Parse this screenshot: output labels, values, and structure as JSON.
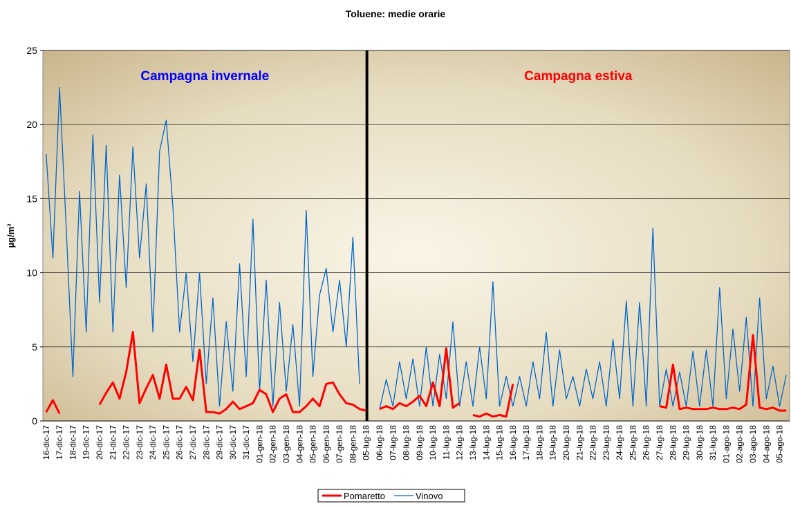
{
  "chart_data": {
    "type": "line",
    "title": "Toluene: medie orarie",
    "y_label": "µg/m³",
    "annotations": [
      {
        "text": "Campagna invernale",
        "color": "#0000ff"
      },
      {
        "text": "Campagna estiva",
        "color": "#ff0000"
      }
    ],
    "categories": [
      "16-dic-17",
      null,
      "17-dic-17",
      null,
      "18-dic-17",
      null,
      "19-dic-17",
      null,
      "20-dic-17",
      null,
      "21-dic-17",
      null,
      "22-dic-17",
      null,
      "23-dic-17",
      null,
      "24-dic-17",
      null,
      "25-dic-17",
      null,
      "26-dic-17",
      null,
      "27-dic-17",
      null,
      "28-dic-17",
      null,
      "29-dic-17",
      null,
      "30-dic-17",
      null,
      "31-dic-17",
      null,
      "01-gen-18",
      null,
      "02-gen-18",
      null,
      "03-gen-18",
      null,
      "04-gen-18",
      null,
      "05-gen-18",
      null,
      "06-gen-18",
      null,
      "07-gen-18",
      null,
      "08-gen-18",
      null,
      "05-lug-18",
      null,
      "06-lug-18",
      null,
      "07-lug-18",
      null,
      "08-lug-18",
      null,
      "09-lug-18",
      null,
      "10-lug-18",
      null,
      "11-lug-18",
      null,
      "12-lug-18",
      null,
      "13-lug-18",
      null,
      "14-lug-18",
      null,
      "15-lug-18",
      null,
      "16-lug-18",
      null,
      "17-lug-18",
      null,
      "18-lug-18",
      null,
      "19-lug-18",
      null,
      "20-lug-18",
      null,
      "21-lug-18",
      null,
      "22-lug-18",
      null,
      "23-lug-18",
      null,
      "24-lug-18",
      null,
      "25-lug-18",
      null,
      "26-lug-18",
      null,
      "27-lug-18",
      null,
      "28-lug-18",
      null,
      "29-lug-18",
      null,
      "30-lug-18",
      null,
      "31-lug-18",
      null,
      "01-ago-18",
      null,
      "02-ago-18",
      null,
      "03-ago-18",
      null,
      "04-ago-18",
      null,
      "05-ago-18",
      null
    ],
    "series": [
      {
        "name": "Pomaretto",
        "color": "#ff0000",
        "values": [
          0.6,
          1.4,
          0.5,
          null,
          null,
          null,
          null,
          null,
          1.1,
          1.9,
          2.6,
          1.5,
          3.3,
          6,
          1.2,
          2.2,
          3.1,
          1.5,
          3.8,
          1.5,
          1.5,
          2.3,
          1.4,
          4.8,
          0.6,
          0.6,
          0.5,
          0.8,
          1.3,
          0.8,
          1,
          1.2,
          2.1,
          1.8,
          0.6,
          1.5,
          1.8,
          0.6,
          0.6,
          1,
          1.5,
          1,
          2.5,
          2.6,
          1.8,
          1.2,
          1.1,
          0.8,
          0.7,
          null,
          0.8,
          1,
          0.8,
          1.2,
          1,
          1.3,
          1.7,
          1,
          2.6,
          1,
          4.9,
          0.9,
          1.2,
          null,
          0.4,
          0.3,
          0.5,
          0.3,
          0.4,
          0.3,
          2.5,
          null,
          null,
          null,
          null,
          null,
          null,
          null,
          null,
          null,
          null,
          null,
          null,
          null,
          null,
          null,
          null,
          null,
          null,
          null,
          null,
          null,
          1,
          0.9,
          3.8,
          0.8,
          0.9,
          0.8,
          0.8,
          0.8,
          0.9,
          0.8,
          0.8,
          0.9,
          0.8,
          1.1,
          5.8,
          0.9,
          0.8,
          0.9,
          0.7,
          0.7
        ]
      },
      {
        "name": "Vinovo",
        "color": "#0066cc",
        "values": [
          18,
          11,
          22.5,
          13,
          3,
          15.5,
          6,
          19.3,
          8,
          18.6,
          6,
          16.6,
          9,
          18.5,
          11,
          16,
          6,
          18.2,
          20.3,
          14.5,
          6,
          10,
          4,
          10,
          2.5,
          8.3,
          1,
          6.7,
          2,
          10.6,
          3,
          13.6,
          2,
          9.5,
          1,
          8,
          2,
          6.5,
          1,
          14.2,
          3,
          8.5,
          10.3,
          6,
          9.5,
          5,
          12.4,
          2.5,
          null,
          null,
          0.8,
          2.8,
          1,
          4,
          1.5,
          4.2,
          1,
          5,
          1,
          4.5,
          1.5,
          6.7,
          1,
          4,
          1,
          5,
          1.5,
          9.4,
          1,
          3,
          1,
          3,
          1,
          4,
          1.5,
          6,
          1,
          4.8,
          1.5,
          3,
          1,
          3.5,
          1.5,
          4,
          1,
          5.5,
          1.5,
          8.1,
          1,
          8,
          1,
          13,
          1,
          3.5,
          1,
          3.3,
          1,
          4.7,
          1,
          4.8,
          1,
          9,
          1.5,
          6.2,
          2,
          7,
          1,
          8.3,
          1.5,
          3.7,
          1,
          3.1
        ]
      }
    ],
    "ylim": [
      0,
      25
    ],
    "yticks": [
      0,
      5,
      10,
      15,
      20,
      25
    ],
    "grid": true,
    "legend": "bottom"
  }
}
